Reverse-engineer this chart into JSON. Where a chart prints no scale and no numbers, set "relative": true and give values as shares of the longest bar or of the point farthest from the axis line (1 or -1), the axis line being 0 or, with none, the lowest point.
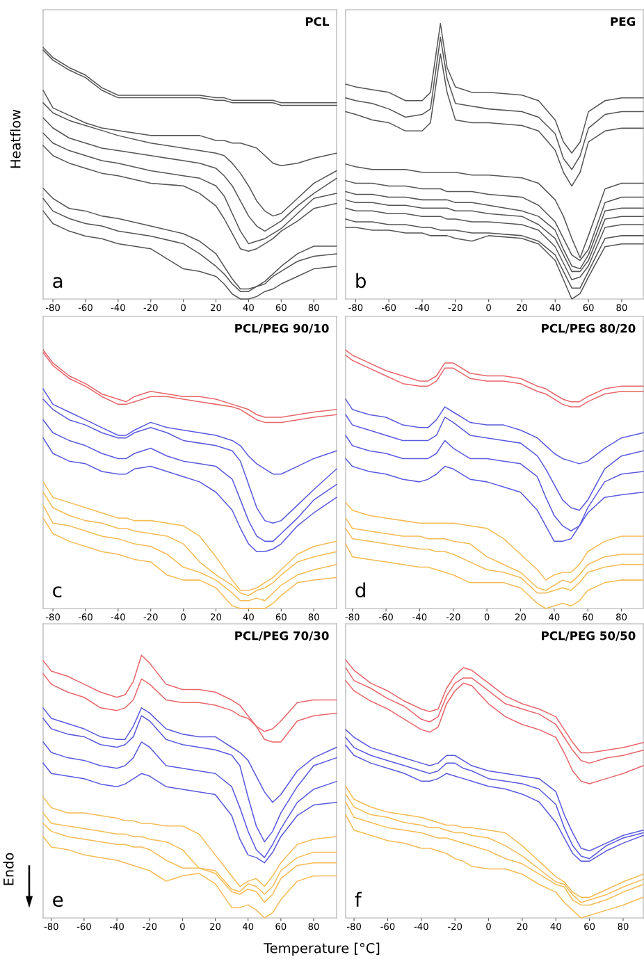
{
  "chart_data": [
    {
      "type": "line",
      "title": "PCL",
      "ylabel": "Heatflow",
      "annotations": [
        "a"
      ],
      "relative": true,
      "xlim": [
        -86,
        94
      ],
      "xticks": [
        -80,
        -60,
        -40,
        -20,
        0,
        20,
        40,
        60,
        80
      ],
      "x": [
        -86,
        -80,
        -70,
        -60,
        -50,
        -40,
        -20,
        0,
        10,
        20,
        25,
        30,
        35,
        40,
        45,
        50,
        55,
        60,
        70,
        80,
        94
      ],
      "series": [
        {
          "color": "#555555",
          "values": [
            1.0,
            0.96,
            0.92,
            0.89,
            0.84,
            0.81,
            0.81,
            0.81,
            0.81,
            0.8,
            0.8,
            0.79,
            0.79,
            0.79,
            0.79,
            0.79,
            0.79,
            0.78,
            0.78,
            0.78,
            0.78
          ]
        },
        {
          "color": "#555555",
          "values": [
            0.99,
            0.95,
            0.91,
            0.88,
            0.83,
            0.8,
            0.8,
            0.8,
            0.8,
            0.79,
            0.79,
            0.78,
            0.78,
            0.78,
            0.78,
            0.78,
            0.78,
            0.77,
            0.77,
            0.77,
            0.77
          ]
        },
        {
          "color": "#555555",
          "values": [
            0.83,
            0.76,
            0.73,
            0.7,
            0.68,
            0.67,
            0.65,
            0.65,
            0.65,
            0.63,
            0.63,
            0.62,
            0.62,
            0.61,
            0.6,
            0.57,
            0.54,
            0.53,
            0.54,
            0.56,
            0.58
          ]
        },
        {
          "color": "#555555",
          "values": [
            0.78,
            0.74,
            0.71,
            0.69,
            0.67,
            0.65,
            0.62,
            0.6,
            0.59,
            0.58,
            0.57,
            0.54,
            0.5,
            0.45,
            0.39,
            0.35,
            0.33,
            0.34,
            0.4,
            0.46,
            0.51
          ]
        },
        {
          "color": "#555555",
          "values": [
            0.72,
            0.68,
            0.64,
            0.62,
            0.6,
            0.59,
            0.57,
            0.55,
            0.54,
            0.52,
            0.49,
            0.45,
            0.39,
            0.33,
            0.29,
            0.27,
            0.29,
            0.31,
            0.37,
            0.42,
            0.48
          ]
        },
        {
          "color": "#555555",
          "values": [
            0.66,
            0.62,
            0.59,
            0.57,
            0.55,
            0.54,
            0.51,
            0.49,
            0.48,
            0.45,
            0.41,
            0.34,
            0.27,
            0.22,
            0.23,
            0.24,
            0.26,
            0.28,
            0.34,
            0.4,
            0.42
          ]
        },
        {
          "color": "#555555",
          "values": [
            0.61,
            0.57,
            0.54,
            0.52,
            0.5,
            0.49,
            0.46,
            0.45,
            0.42,
            0.37,
            0.32,
            0.26,
            0.2,
            0.19,
            0.2,
            0.22,
            0.24,
            0.27,
            0.31,
            0.36,
            0.38
          ]
        },
        {
          "color": "#555555",
          "values": [
            0.44,
            0.4,
            0.36,
            0.35,
            0.33,
            0.32,
            0.29,
            0.26,
            0.23,
            0.18,
            0.13,
            0.08,
            0.04,
            0.04,
            0.05,
            0.07,
            0.1,
            0.13,
            0.18,
            0.21,
            0.21
          ]
        },
        {
          "color": "#555555",
          "values": [
            0.4,
            0.35,
            0.32,
            0.3,
            0.29,
            0.27,
            0.25,
            0.22,
            0.18,
            0.13,
            0.1,
            0.06,
            0.03,
            0.03,
            0.05,
            0.06,
            0.09,
            0.11,
            0.15,
            0.17,
            0.18
          ]
        },
        {
          "color": "#555555",
          "values": [
            0.35,
            0.3,
            0.27,
            0.25,
            0.24,
            0.22,
            0.2,
            0.12,
            0.11,
            0.09,
            0.06,
            0.02,
            0.0,
            0.0,
            0.01,
            0.03,
            0.04,
            0.06,
            0.09,
            0.12,
            0.13
          ]
        }
      ]
    },
    {
      "type": "line",
      "title": "PEG",
      "annotations": [
        "b"
      ],
      "relative": true,
      "xlim": [
        -86,
        93
      ],
      "xticks": [
        -80,
        -60,
        -40,
        -20,
        0,
        20,
        40,
        60,
        80
      ],
      "x": [
        -86,
        -80,
        -70,
        -60,
        -50,
        -40,
        -35,
        -29,
        -25,
        -20,
        -10,
        0,
        20,
        30,
        40,
        45,
        50,
        55,
        60,
        70,
        80,
        93
      ],
      "series": [
        {
          "color": "#555555",
          "values": [
            0.78,
            0.77,
            0.76,
            0.75,
            0.72,
            0.72,
            0.75,
            1.0,
            0.84,
            0.77,
            0.75,
            0.75,
            0.74,
            0.72,
            0.65,
            0.57,
            0.53,
            0.57,
            0.68,
            0.72,
            0.73,
            0.73
          ]
        },
        {
          "color": "#555555",
          "values": [
            0.73,
            0.72,
            0.71,
            0.69,
            0.66,
            0.67,
            0.69,
            0.95,
            0.8,
            0.71,
            0.7,
            0.69,
            0.68,
            0.66,
            0.6,
            0.51,
            0.47,
            0.52,
            0.62,
            0.67,
            0.68,
            0.68
          ]
        },
        {
          "color": "#555555",
          "values": [
            0.68,
            0.67,
            0.65,
            0.64,
            0.61,
            0.61,
            0.64,
            0.89,
            0.75,
            0.65,
            0.64,
            0.64,
            0.63,
            0.61,
            0.54,
            0.46,
            0.41,
            0.46,
            0.57,
            0.61,
            0.62,
            0.62
          ]
        },
        {
          "color": "#555555",
          "values": [
            0.49,
            0.48,
            0.47,
            0.47,
            0.47,
            0.46,
            0.46,
            0.46,
            0.46,
            0.46,
            0.45,
            0.45,
            0.44,
            0.42,
            0.36,
            0.3,
            0.22,
            0.15,
            0.23,
            0.4,
            0.42,
            0.42
          ]
        },
        {
          "color": "#555555",
          "values": [
            0.43,
            0.42,
            0.42,
            0.41,
            0.41,
            0.4,
            0.4,
            0.4,
            0.39,
            0.39,
            0.39,
            0.38,
            0.37,
            0.34,
            0.28,
            0.22,
            0.16,
            0.14,
            0.18,
            0.35,
            0.37,
            0.37
          ]
        },
        {
          "color": "#555555",
          "values": [
            0.39,
            0.38,
            0.38,
            0.37,
            0.37,
            0.36,
            0.36,
            0.36,
            0.36,
            0.35,
            0.35,
            0.34,
            0.32,
            0.3,
            0.25,
            0.18,
            0.12,
            0.11,
            0.16,
            0.32,
            0.33,
            0.33
          ]
        },
        {
          "color": "#555555",
          "values": [
            0.36,
            0.35,
            0.35,
            0.34,
            0.34,
            0.33,
            0.33,
            0.33,
            0.33,
            0.32,
            0.32,
            0.31,
            0.3,
            0.27,
            0.22,
            0.16,
            0.1,
            0.1,
            0.14,
            0.29,
            0.3,
            0.3
          ]
        },
        {
          "color": "#555555",
          "values": [
            0.33,
            0.32,
            0.32,
            0.31,
            0.31,
            0.3,
            0.3,
            0.3,
            0.29,
            0.29,
            0.28,
            0.28,
            0.27,
            0.25,
            0.19,
            0.13,
            0.07,
            0.08,
            0.12,
            0.26,
            0.27,
            0.27
          ]
        },
        {
          "color": "#555555",
          "values": [
            0.29,
            0.28,
            0.28,
            0.27,
            0.27,
            0.26,
            0.26,
            0.25,
            0.25,
            0.25,
            0.24,
            0.24,
            0.23,
            0.21,
            0.16,
            0.1,
            0.04,
            0.04,
            0.1,
            0.22,
            0.23,
            0.23
          ]
        },
        {
          "color": "#555555",
          "values": [
            0.26,
            0.26,
            0.25,
            0.25,
            0.24,
            0.24,
            0.23,
            0.23,
            0.23,
            0.22,
            0.21,
            0.23,
            0.22,
            0.2,
            0.14,
            0.07,
            0.0,
            0.02,
            0.08,
            0.19,
            0.2,
            0.2
          ]
        }
      ]
    },
    {
      "type": "line",
      "title": "PCL/PEG 90/10",
      "annotations": [
        "c"
      ],
      "relative": true,
      "xlim": [
        -86,
        94
      ],
      "xticks": [
        -80,
        -60,
        -40,
        -20,
        0,
        20,
        40,
        60,
        80
      ],
      "x": [
        -86,
        -80,
        -70,
        -60,
        -50,
        -40,
        -35,
        -30,
        -20,
        -10,
        0,
        10,
        20,
        30,
        35,
        40,
        45,
        50,
        55,
        60,
        70,
        80,
        94
      ],
      "series": [
        {
          "color": "#e8666a",
          "values": [
            1.0,
            0.95,
            0.9,
            0.87,
            0.83,
            0.81,
            0.8,
            0.82,
            0.84,
            0.83,
            0.82,
            0.82,
            0.81,
            0.79,
            0.78,
            0.77,
            0.75,
            0.74,
            0.74,
            0.74,
            0.75,
            0.76,
            0.77
          ]
        },
        {
          "color": "#e8666a",
          "values": [
            0.99,
            0.94,
            0.89,
            0.86,
            0.82,
            0.79,
            0.79,
            0.8,
            0.82,
            0.82,
            0.81,
            0.8,
            0.79,
            0.78,
            0.77,
            0.75,
            0.73,
            0.72,
            0.72,
            0.72,
            0.73,
            0.74,
            0.75
          ]
        },
        {
          "color": "#5a5ae0",
          "values": [
            0.85,
            0.79,
            0.76,
            0.73,
            0.7,
            0.67,
            0.67,
            0.69,
            0.72,
            0.7,
            0.69,
            0.68,
            0.67,
            0.65,
            0.63,
            0.59,
            0.56,
            0.54,
            0.52,
            0.52,
            0.55,
            0.58,
            0.61
          ]
        },
        {
          "color": "#5a5ae0",
          "values": [
            0.81,
            0.77,
            0.73,
            0.71,
            0.68,
            0.66,
            0.66,
            0.68,
            0.7,
            0.68,
            0.65,
            0.64,
            0.63,
            0.61,
            0.57,
            0.48,
            0.39,
            0.34,
            0.33,
            0.34,
            0.4,
            0.46,
            0.54
          ]
        },
        {
          "color": "#5a5ae0",
          "values": [
            0.73,
            0.68,
            0.65,
            0.63,
            0.6,
            0.58,
            0.58,
            0.6,
            0.62,
            0.59,
            0.57,
            0.56,
            0.55,
            0.5,
            0.42,
            0.34,
            0.28,
            0.26,
            0.26,
            0.29,
            0.35,
            0.42,
            0.48
          ]
        },
        {
          "color": "#5a5ae0",
          "values": [
            0.66,
            0.6,
            0.57,
            0.56,
            0.53,
            0.52,
            0.52,
            0.54,
            0.55,
            0.53,
            0.51,
            0.49,
            0.45,
            0.38,
            0.31,
            0.25,
            0.22,
            0.22,
            0.23,
            0.25,
            0.32,
            0.37,
            0.43
          ]
        },
        {
          "color": "#f5bb55",
          "values": [
            0.49,
            0.43,
            0.41,
            0.39,
            0.37,
            0.35,
            0.35,
            0.34,
            0.34,
            0.33,
            0.32,
            0.28,
            0.2,
            0.11,
            0.07,
            0.07,
            0.08,
            0.1,
            0.12,
            0.15,
            0.21,
            0.24,
            0.26
          ]
        },
        {
          "color": "#f5bb55",
          "values": [
            0.45,
            0.39,
            0.36,
            0.34,
            0.33,
            0.31,
            0.31,
            0.3,
            0.29,
            0.28,
            0.25,
            0.18,
            0.13,
            0.09,
            0.06,
            0.05,
            0.07,
            0.08,
            0.1,
            0.13,
            0.18,
            0.2,
            0.22
          ]
        },
        {
          "color": "#f5bb55",
          "values": [
            0.4,
            0.33,
            0.32,
            0.3,
            0.28,
            0.27,
            0.26,
            0.25,
            0.24,
            0.21,
            0.16,
            0.14,
            0.11,
            0.06,
            0.03,
            0.03,
            0.04,
            0.03,
            0.06,
            0.09,
            0.13,
            0.15,
            0.17
          ]
        },
        {
          "color": "#f5bb55",
          "values": [
            0.35,
            0.29,
            0.26,
            0.24,
            0.22,
            0.21,
            0.2,
            0.19,
            0.18,
            0.13,
            0.11,
            0.11,
            0.08,
            0.01,
            0.0,
            0.0,
            0.0,
            0.0,
            0.02,
            0.05,
            0.1,
            0.11,
            0.12
          ]
        }
      ]
    },
    {
      "type": "line",
      "title": "PCL/PEG 80/20",
      "annotations": [
        "d"
      ],
      "relative": true,
      "xlim": [
        -84,
        93
      ],
      "xticks": [
        -80,
        -60,
        -40,
        -20,
        0,
        20,
        40,
        60,
        80
      ],
      "x": [
        -84,
        -80,
        -70,
        -60,
        -50,
        -40,
        -35,
        -30,
        -25,
        -20,
        -10,
        0,
        10,
        20,
        30,
        35,
        40,
        45,
        50,
        55,
        60,
        70,
        80,
        93
      ],
      "series": [
        {
          "color": "#e8666a",
          "values": [
            1.0,
            0.98,
            0.95,
            0.92,
            0.9,
            0.88,
            0.88,
            0.9,
            0.95,
            0.95,
            0.91,
            0.9,
            0.9,
            0.89,
            0.86,
            0.85,
            0.83,
            0.81,
            0.8,
            0.8,
            0.82,
            0.85,
            0.86,
            0.86
          ]
        },
        {
          "color": "#e8666a",
          "values": [
            0.98,
            0.96,
            0.93,
            0.9,
            0.87,
            0.86,
            0.86,
            0.88,
            0.93,
            0.93,
            0.89,
            0.88,
            0.88,
            0.87,
            0.84,
            0.83,
            0.81,
            0.79,
            0.78,
            0.78,
            0.8,
            0.83,
            0.84,
            0.84
          ]
        },
        {
          "color": "#5a5ae0",
          "values": [
            0.81,
            0.77,
            0.75,
            0.74,
            0.71,
            0.7,
            0.7,
            0.73,
            0.78,
            0.76,
            0.72,
            0.71,
            0.71,
            0.69,
            0.66,
            0.63,
            0.6,
            0.58,
            0.57,
            0.56,
            0.57,
            0.62,
            0.66,
            0.68
          ]
        },
        {
          "color": "#5a5ae0",
          "values": [
            0.75,
            0.71,
            0.69,
            0.67,
            0.65,
            0.65,
            0.65,
            0.67,
            0.74,
            0.72,
            0.67,
            0.66,
            0.65,
            0.64,
            0.59,
            0.54,
            0.48,
            0.42,
            0.39,
            0.38,
            0.42,
            0.54,
            0.59,
            0.61
          ]
        },
        {
          "color": "#5a5ae0",
          "values": [
            0.67,
            0.63,
            0.61,
            0.6,
            0.58,
            0.58,
            0.58,
            0.6,
            0.65,
            0.62,
            0.58,
            0.58,
            0.57,
            0.56,
            0.51,
            0.43,
            0.36,
            0.32,
            0.3,
            0.32,
            0.39,
            0.49,
            0.52,
            0.53
          ]
        },
        {
          "color": "#5a5ae0",
          "values": [
            0.58,
            0.55,
            0.53,
            0.52,
            0.5,
            0.49,
            0.5,
            0.52,
            0.55,
            0.54,
            0.5,
            0.49,
            0.47,
            0.45,
            0.38,
            0.32,
            0.26,
            0.26,
            0.27,
            0.32,
            0.37,
            0.43,
            0.44,
            0.45
          ]
        },
        {
          "color": "#f5bb55",
          "values": [
            0.41,
            0.38,
            0.36,
            0.35,
            0.34,
            0.33,
            0.33,
            0.33,
            0.33,
            0.33,
            0.32,
            0.31,
            0.27,
            0.21,
            0.15,
            0.11,
            0.13,
            0.14,
            0.14,
            0.17,
            0.22,
            0.26,
            0.28,
            0.28
          ]
        },
        {
          "color": "#f5bb55",
          "values": [
            0.35,
            0.31,
            0.3,
            0.29,
            0.28,
            0.28,
            0.27,
            0.27,
            0.27,
            0.26,
            0.25,
            0.2,
            0.17,
            0.14,
            0.08,
            0.07,
            0.09,
            0.11,
            0.1,
            0.13,
            0.17,
            0.2,
            0.21,
            0.21
          ]
        },
        {
          "color": "#f5bb55",
          "values": [
            0.31,
            0.27,
            0.26,
            0.25,
            0.24,
            0.23,
            0.23,
            0.22,
            0.22,
            0.21,
            0.18,
            0.15,
            0.14,
            0.12,
            0.06,
            0.06,
            0.07,
            0.08,
            0.07,
            0.1,
            0.14,
            0.16,
            0.17,
            0.17
          ]
        },
        {
          "color": "#f5bb55",
          "values": [
            0.25,
            0.2,
            0.19,
            0.18,
            0.17,
            0.16,
            0.16,
            0.15,
            0.14,
            0.13,
            0.1,
            0.1,
            0.1,
            0.08,
            0.02,
            0.0,
            0.01,
            0.02,
            0.01,
            0.03,
            0.07,
            0.1,
            0.11,
            0.11
          ]
        }
      ]
    },
    {
      "type": "line",
      "title": "PCL/PEG 70/30",
      "annotations": [
        "e",
        "Endo"
      ],
      "relative": true,
      "xlim": [
        -85,
        94
      ],
      "xticks": [
        -80,
        -60,
        -40,
        -20,
        0,
        20,
        40,
        60,
        80
      ],
      "x": [
        -85,
        -80,
        -70,
        -60,
        -50,
        -40,
        -35,
        -30,
        -25,
        -20,
        -10,
        0,
        10,
        20,
        30,
        35,
        40,
        45,
        50,
        55,
        60,
        70,
        80,
        94
      ],
      "series": [
        {
          "color": "#e8666a",
          "values": [
            0.98,
            0.94,
            0.92,
            0.89,
            0.86,
            0.84,
            0.85,
            0.9,
            1.0,
            0.97,
            0.89,
            0.87,
            0.87,
            0.86,
            0.83,
            0.81,
            0.77,
            0.73,
            0.71,
            0.72,
            0.75,
            0.82,
            0.83,
            0.83
          ]
        },
        {
          "color": "#e8666a",
          "values": [
            0.93,
            0.89,
            0.86,
            0.84,
            0.8,
            0.79,
            0.8,
            0.83,
            0.91,
            0.89,
            0.83,
            0.82,
            0.82,
            0.81,
            0.79,
            0.77,
            0.76,
            0.73,
            0.68,
            0.67,
            0.67,
            0.75,
            0.77,
            0.78
          ]
        },
        {
          "color": "#5a5ae0",
          "values": [
            0.8,
            0.76,
            0.74,
            0.72,
            0.69,
            0.68,
            0.68,
            0.73,
            0.8,
            0.78,
            0.72,
            0.7,
            0.69,
            0.69,
            0.65,
            0.63,
            0.6,
            0.54,
            0.48,
            0.44,
            0.47,
            0.56,
            0.61,
            0.65
          ]
        },
        {
          "color": "#5a5ae0",
          "values": [
            0.76,
            0.72,
            0.7,
            0.69,
            0.66,
            0.65,
            0.66,
            0.69,
            0.77,
            0.75,
            0.68,
            0.66,
            0.65,
            0.64,
            0.62,
            0.58,
            0.46,
            0.35,
            0.29,
            0.33,
            0.4,
            0.5,
            0.58,
            0.61
          ]
        },
        {
          "color": "#5a5ae0",
          "values": [
            0.67,
            0.63,
            0.61,
            0.6,
            0.58,
            0.57,
            0.58,
            0.61,
            0.67,
            0.65,
            0.58,
            0.57,
            0.56,
            0.55,
            0.5,
            0.42,
            0.33,
            0.26,
            0.23,
            0.28,
            0.34,
            0.44,
            0.49,
            0.52
          ]
        },
        {
          "color": "#5a5ae0",
          "values": [
            0.59,
            0.55,
            0.54,
            0.53,
            0.51,
            0.5,
            0.51,
            0.53,
            0.55,
            0.54,
            0.5,
            0.49,
            0.48,
            0.47,
            0.39,
            0.3,
            0.24,
            0.23,
            0.21,
            0.25,
            0.31,
            0.39,
            0.43,
            0.44
          ]
        },
        {
          "color": "#f5bb55",
          "values": [
            0.46,
            0.42,
            0.4,
            0.4,
            0.39,
            0.38,
            0.37,
            0.37,
            0.36,
            0.36,
            0.35,
            0.35,
            0.32,
            0.24,
            0.16,
            0.12,
            0.14,
            0.15,
            0.12,
            0.16,
            0.21,
            0.28,
            0.3,
            0.31
          ]
        },
        {
          "color": "#f5bb55",
          "values": [
            0.4,
            0.36,
            0.35,
            0.34,
            0.33,
            0.32,
            0.32,
            0.31,
            0.31,
            0.3,
            0.29,
            0.26,
            0.19,
            0.18,
            0.11,
            0.1,
            0.13,
            0.12,
            0.09,
            0.12,
            0.18,
            0.23,
            0.25,
            0.25
          ]
        },
        {
          "color": "#f5bb55",
          "values": [
            0.36,
            0.33,
            0.31,
            0.3,
            0.29,
            0.28,
            0.28,
            0.27,
            0.27,
            0.26,
            0.22,
            0.19,
            0.19,
            0.17,
            0.1,
            0.09,
            0.11,
            0.1,
            0.06,
            0.09,
            0.15,
            0.2,
            0.21,
            0.21
          ]
        },
        {
          "color": "#f5bb55",
          "values": [
            0.31,
            0.27,
            0.26,
            0.24,
            0.23,
            0.22,
            0.21,
            0.2,
            0.19,
            0.18,
            0.14,
            0.16,
            0.17,
            0.13,
            0.04,
            0.04,
            0.05,
            0.03,
            0.0,
            0.02,
            0.07,
            0.14,
            0.16,
            0.16
          ]
        }
      ]
    },
    {
      "type": "line",
      "title": "PCL/PEG 50/50",
      "xlabel": "Temperature [°C]",
      "annotations": [
        "f"
      ],
      "relative": true,
      "xlim": [
        -85,
        92
      ],
      "xticks": [
        -80,
        -60,
        -40,
        -20,
        0,
        20,
        40,
        60,
        80
      ],
      "x": [
        -85,
        -80,
        -70,
        -60,
        -50,
        -40,
        -35,
        -30,
        -25,
        -20,
        -15,
        -10,
        0,
        10,
        20,
        30,
        40,
        45,
        50,
        55,
        60,
        70,
        80,
        92
      ],
      "series": [
        {
          "color": "#e8666a",
          "values": [
            1.0,
            0.96,
            0.91,
            0.88,
            0.84,
            0.81,
            0.8,
            0.81,
            0.89,
            0.94,
            0.97,
            0.96,
            0.91,
            0.86,
            0.83,
            0.81,
            0.78,
            0.73,
            0.68,
            0.64,
            0.64,
            0.65,
            0.66,
            0.68
          ]
        },
        {
          "color": "#e8666a",
          "values": [
            0.97,
            0.92,
            0.89,
            0.85,
            0.82,
            0.77,
            0.76,
            0.78,
            0.86,
            0.91,
            0.93,
            0.93,
            0.88,
            0.83,
            0.81,
            0.79,
            0.75,
            0.7,
            0.65,
            0.61,
            0.6,
            0.62,
            0.63,
            0.65
          ]
        },
        {
          "color": "#e8666a",
          "values": [
            0.92,
            0.88,
            0.84,
            0.81,
            0.77,
            0.73,
            0.72,
            0.74,
            0.83,
            0.88,
            0.91,
            0.9,
            0.83,
            0.78,
            0.75,
            0.73,
            0.7,
            0.64,
            0.57,
            0.53,
            0.52,
            0.54,
            0.56,
            0.59
          ]
        },
        {
          "color": "#5a5ae0",
          "values": [
            0.73,
            0.7,
            0.66,
            0.64,
            0.62,
            0.6,
            0.59,
            0.6,
            0.63,
            0.63,
            0.61,
            0.59,
            0.57,
            0.56,
            0.55,
            0.54,
            0.49,
            0.4,
            0.33,
            0.27,
            0.26,
            0.29,
            0.32,
            0.34
          ]
        },
        {
          "color": "#5a5ae0",
          "values": [
            0.7,
            0.66,
            0.63,
            0.61,
            0.59,
            0.57,
            0.56,
            0.57,
            0.6,
            0.6,
            0.58,
            0.57,
            0.54,
            0.53,
            0.52,
            0.5,
            0.44,
            0.35,
            0.28,
            0.24,
            0.23,
            0.28,
            0.31,
            0.33
          ]
        },
        {
          "color": "#5a5ae0",
          "values": [
            0.67,
            0.63,
            0.6,
            0.58,
            0.56,
            0.53,
            0.53,
            0.54,
            0.56,
            0.55,
            0.54,
            0.53,
            0.51,
            0.5,
            0.48,
            0.45,
            0.37,
            0.31,
            0.25,
            0.22,
            0.22,
            0.26,
            0.29,
            0.32
          ]
        },
        {
          "color": "#f5bb55",
          "values": [
            0.51,
            0.46,
            0.43,
            0.41,
            0.4,
            0.39,
            0.38,
            0.37,
            0.36,
            0.36,
            0.35,
            0.35,
            0.34,
            0.33,
            0.28,
            0.22,
            0.16,
            0.14,
            0.1,
            0.08,
            0.08,
            0.11,
            0.14,
            0.17
          ]
        },
        {
          "color": "#f5bb55",
          "values": [
            0.48,
            0.43,
            0.4,
            0.39,
            0.37,
            0.36,
            0.35,
            0.35,
            0.34,
            0.33,
            0.33,
            0.32,
            0.31,
            0.28,
            0.24,
            0.19,
            0.14,
            0.13,
            0.09,
            0.06,
            0.07,
            0.09,
            0.12,
            0.15
          ]
        },
        {
          "color": "#f5bb55",
          "values": [
            0.45,
            0.39,
            0.37,
            0.35,
            0.34,
            0.33,
            0.32,
            0.31,
            0.31,
            0.3,
            0.29,
            0.28,
            0.26,
            0.23,
            0.21,
            0.17,
            0.13,
            0.12,
            0.07,
            0.05,
            0.05,
            0.07,
            0.1,
            0.13
          ]
        },
        {
          "color": "#f5bb55",
          "values": [
            0.4,
            0.34,
            0.32,
            0.3,
            0.29,
            0.27,
            0.27,
            0.26,
            0.25,
            0.23,
            0.22,
            0.2,
            0.19,
            0.19,
            0.17,
            0.13,
            0.1,
            0.06,
            0.03,
            0.0,
            0.01,
            0.03,
            0.05,
            0.08
          ]
        }
      ]
    }
  ]
}
